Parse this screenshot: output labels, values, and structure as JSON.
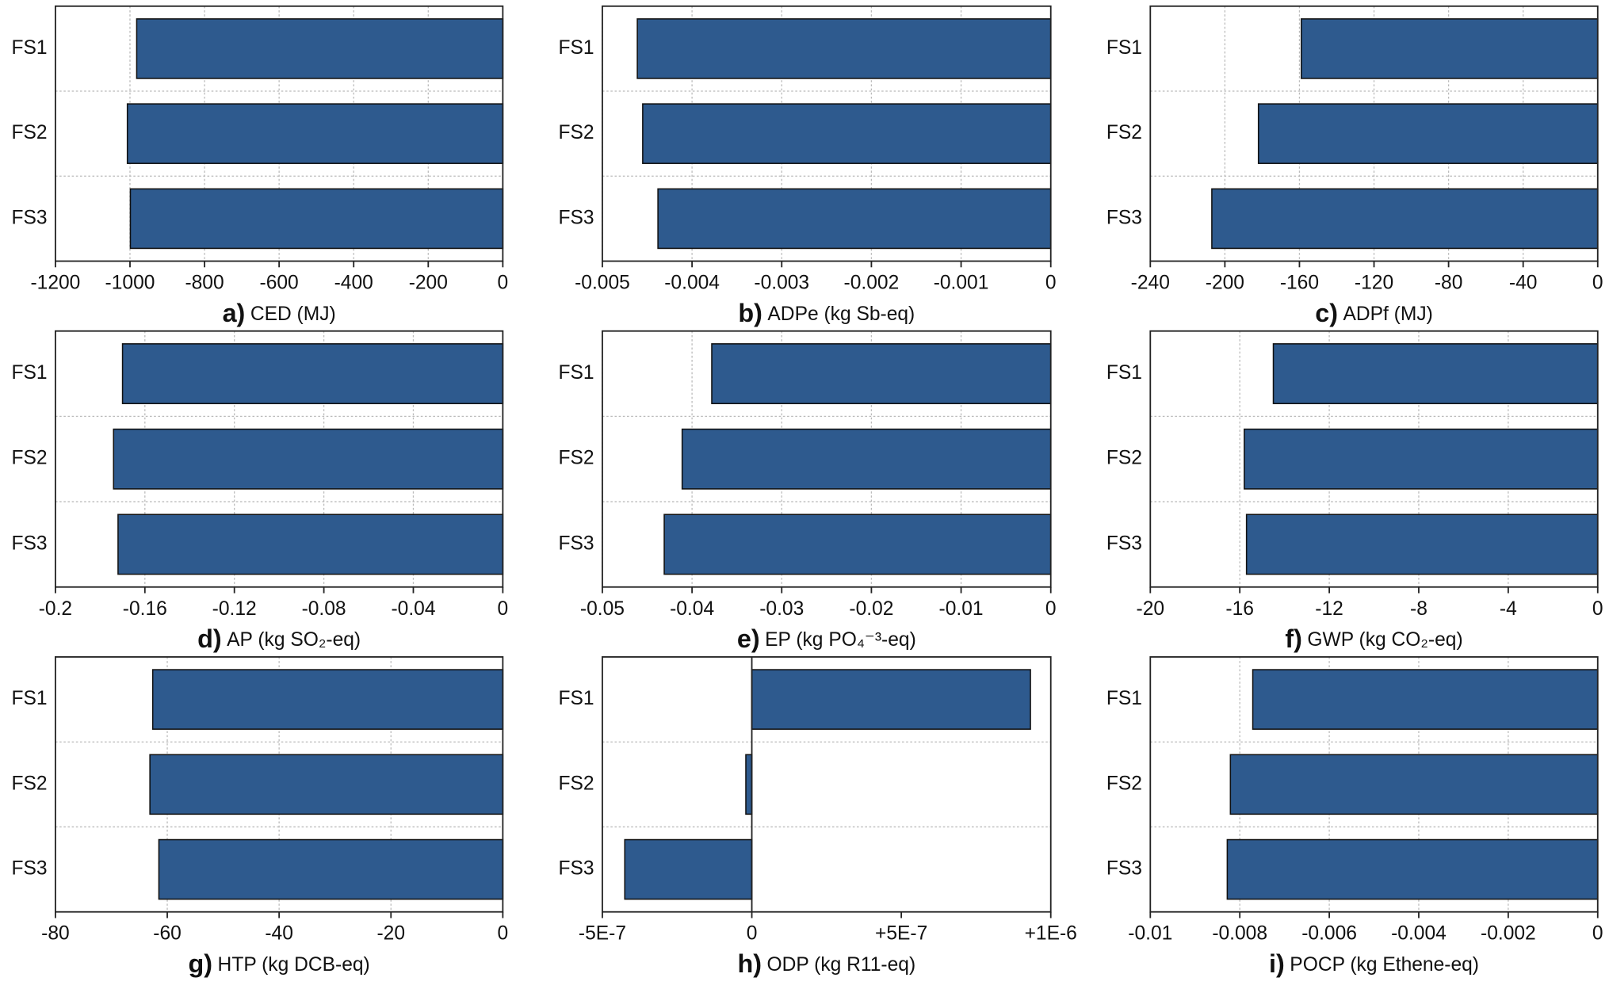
{
  "chart_data": [
    {
      "type": "bar",
      "orientation": "horizontal",
      "panel": "a)",
      "xlabel": "CED (MJ)",
      "categories": [
        "FS1",
        "FS2",
        "FS3"
      ],
      "values": [
        -982,
        -1007,
        -999
      ],
      "color": "#2e5a8e",
      "xlim": [
        -1200,
        0
      ],
      "xticks": [
        -1200,
        -1000,
        -800,
        -600,
        -400,
        -200,
        0
      ],
      "grid": true
    },
    {
      "type": "bar",
      "orientation": "horizontal",
      "panel": "b)",
      "xlabel": "ADPe (kg Sb-eq)",
      "categories": [
        "FS1",
        "FS2",
        "FS3"
      ],
      "values": [
        -0.00461,
        -0.00455,
        -0.00438
      ],
      "color": "#2e5a8e",
      "xlim": [
        -0.005,
        0
      ],
      "xticks": [
        -0.005,
        -0.004,
        -0.003,
        -0.002,
        -0.001,
        0
      ],
      "grid": true
    },
    {
      "type": "bar",
      "orientation": "horizontal",
      "panel": "c)",
      "xlabel": "ADPf (MJ)",
      "categories": [
        "FS1",
        "FS2",
        "FS3"
      ],
      "values": [
        -159,
        -182,
        -207
      ],
      "color": "#2e5a8e",
      "xlim": [
        -240,
        0
      ],
      "xticks": [
        -240,
        -200,
        -160,
        -120,
        -80,
        -40,
        0
      ],
      "grid": true
    },
    {
      "type": "bar",
      "orientation": "horizontal",
      "panel": "d)",
      "xlabel": "AP (kg SO₂-eq)",
      "categories": [
        "FS1",
        "FS2",
        "FS3"
      ],
      "values": [
        -0.17,
        -0.174,
        -0.172
      ],
      "color": "#2e5a8e",
      "xlim": [
        -0.2,
        0
      ],
      "xticks": [
        -0.2,
        -0.16,
        -0.12,
        -0.08,
        -0.04,
        0
      ],
      "grid": true
    },
    {
      "type": "bar",
      "orientation": "horizontal",
      "panel": "e)",
      "xlabel": "EP (kg PO₄⁻³-eq)",
      "categories": [
        "FS1",
        "FS2",
        "FS3"
      ],
      "values": [
        -0.0378,
        -0.0411,
        -0.0431
      ],
      "color": "#2e5a8e",
      "xlim": [
        -0.05,
        0
      ],
      "xticks": [
        -0.05,
        -0.04,
        -0.03,
        -0.02,
        -0.01,
        0
      ],
      "grid": true
    },
    {
      "type": "bar",
      "orientation": "horizontal",
      "panel": "f)",
      "xlabel": "GWP (kg CO₂-eq)",
      "categories": [
        "FS1",
        "FS2",
        "FS3"
      ],
      "values": [
        -14.5,
        -15.8,
        -15.7
      ],
      "color": "#2e5a8e",
      "xlim": [
        -20,
        0
      ],
      "xticks": [
        -20,
        -16,
        -12,
        -8,
        -4,
        0
      ],
      "grid": true
    },
    {
      "type": "bar",
      "orientation": "horizontal",
      "panel": "g)",
      "xlabel": "HTP (kg DCB-eq)",
      "categories": [
        "FS1",
        "FS2",
        "FS3"
      ],
      "values": [
        -62.6,
        -63.1,
        -61.5
      ],
      "color": "#2e5a8e",
      "xlim": [
        -80,
        0
      ],
      "xticks": [
        -80,
        -60,
        -40,
        -20,
        0
      ],
      "grid": true
    },
    {
      "type": "bar",
      "orientation": "horizontal",
      "panel": "h)",
      "xlabel": "ODP (kg R11-eq)",
      "categories": [
        "FS1",
        "FS2",
        "FS3"
      ],
      "values": [
        9.32e-07,
        -2e-08,
        -4.25e-07
      ],
      "color": "#2e5a8e",
      "xlim": [
        -5e-07,
        1e-06
      ],
      "xticks": [
        {
          "value": -5e-07,
          "label": "-5E-7"
        },
        0,
        {
          "value": 5e-07,
          "label": "+5E-7"
        },
        {
          "value": 1e-06,
          "label": "+1E-6"
        }
      ],
      "grid": false
    },
    {
      "type": "bar",
      "orientation": "horizontal",
      "panel": "i)",
      "xlabel": "POCP (kg Ethene-eq)",
      "categories": [
        "FS1",
        "FS2",
        "FS3"
      ],
      "values": [
        -0.00771,
        -0.00821,
        -0.00828
      ],
      "color": "#2e5a8e",
      "xlim": [
        -0.01,
        0
      ],
      "xticks": [
        -0.01,
        -0.008,
        -0.006,
        -0.004,
        -0.002,
        0
      ],
      "grid": true
    }
  ]
}
